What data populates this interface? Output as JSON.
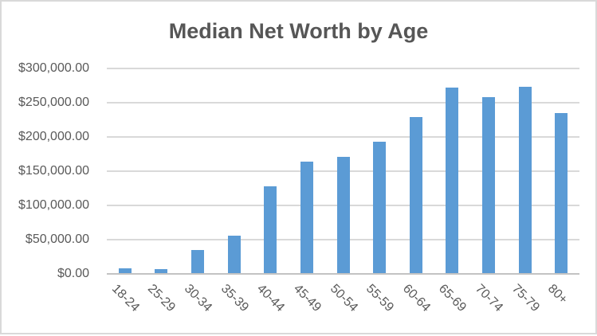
{
  "chart_data": {
    "type": "bar",
    "title": "Median Net Worth by Age",
    "categories": [
      "18-24",
      "25-29",
      "30-34",
      "35-39",
      "40-44",
      "45-49",
      "50-54",
      "55-59",
      "60-64",
      "65-69",
      "70-74",
      "75-79",
      "80+"
    ],
    "values": [
      8216,
      7512,
      35112,
      55519,
      127345,
      164197,
      171320,
      193549,
      228833,
      271805,
      258531,
      272976,
      235193
    ],
    "xlabel": "",
    "ylabel": "",
    "ylim": [
      0,
      300000
    ],
    "ytick_step": 50000,
    "ytick_labels": [
      "$0.00",
      "$50,000.00",
      "$100,000.00",
      "$150,000.00",
      "$200,000.00",
      "$250,000.00",
      "$300,000.00"
    ],
    "x_label_rotation_deg": 45,
    "grid": true,
    "legend": false,
    "colors": {
      "bar": "#5b9bd5",
      "gridline": "#d9d9d9",
      "axis_line": "#c3c3c3",
      "axis_text": "#595959",
      "title_text": "#565656",
      "frame_border": "#d9d9d9",
      "background": "#ffffff"
    }
  }
}
